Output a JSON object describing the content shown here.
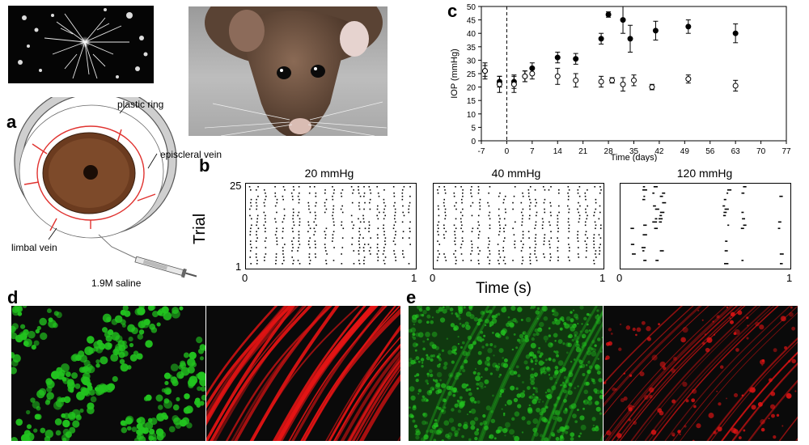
{
  "panels": {
    "a": "a",
    "b": "b",
    "c": "c",
    "d": "d",
    "e": "e"
  },
  "diagram": {
    "plastic_ring": "plastic ring",
    "episcleral_vein": "episcleral vein",
    "limbal_vein": "limbal vein",
    "saline": "1.9M saline"
  },
  "colors": {
    "ring_fill": "#cfcfcf",
    "ring_stroke": "#555555",
    "vein": "#e0322f",
    "eye_fill": "#6b3b1f",
    "green": "#22c41f",
    "red": "#e31414"
  },
  "raster": {
    "ylabel": "Trial",
    "ytick_top": "25",
    "ytick_bottom": "1",
    "xlabel": "Time (s)",
    "xtick_left": "0",
    "xtick_right": "1",
    "plots": [
      {
        "title": "20 mmHg",
        "density": "high"
      },
      {
        "title": "40 mmHg",
        "density": "high"
      },
      {
        "title": "120 mmHg",
        "density": "low"
      }
    ]
  },
  "chart_data": {
    "type": "scatter",
    "xlabel": "Time (days)",
    "ylabel": "IOP (mmHg)",
    "xlim": [
      -7,
      77
    ],
    "ylim": [
      0,
      50
    ],
    "xticks": [
      -7,
      0,
      7,
      14,
      21,
      28,
      35,
      42,
      49,
      56,
      63,
      70,
      77
    ],
    "yticks": [
      0,
      5,
      10,
      15,
      20,
      25,
      30,
      35,
      40,
      45,
      50
    ],
    "vline_x": 0,
    "series": [
      {
        "marker": "filled",
        "points": [
          {
            "x": -6,
            "y": 26,
            "err": 3
          },
          {
            "x": -2,
            "y": 22,
            "err": 2
          },
          {
            "x": 2,
            "y": 22,
            "err": 2.5
          },
          {
            "x": 5,
            "y": 24,
            "err": 2
          },
          {
            "x": 7,
            "y": 27,
            "err": 2
          },
          {
            "x": 14,
            "y": 31,
            "err": 2
          },
          {
            "x": 19,
            "y": 30.5,
            "err": 2
          },
          {
            "x": 26,
            "y": 38,
            "err": 2
          },
          {
            "x": 28,
            "y": 47,
            "err": 1
          },
          {
            "x": 32,
            "y": 45,
            "err": 5
          },
          {
            "x": 34,
            "y": 38,
            "err": 5
          },
          {
            "x": 41,
            "y": 41,
            "err": 3.5
          },
          {
            "x": 50,
            "y": 42.5,
            "err": 2.5
          },
          {
            "x": 63,
            "y": 40,
            "err": 3.5
          }
        ]
      },
      {
        "marker": "open",
        "points": [
          {
            "x": -6,
            "y": 26,
            "err": 2
          },
          {
            "x": -2,
            "y": 21,
            "err": 3
          },
          {
            "x": 2,
            "y": 21,
            "err": 3
          },
          {
            "x": 5,
            "y": 24,
            "err": 2
          },
          {
            "x": 7,
            "y": 25,
            "err": 2
          },
          {
            "x": 14,
            "y": 24,
            "err": 3
          },
          {
            "x": 19,
            "y": 22.5,
            "err": 2.5
          },
          {
            "x": 26,
            "y": 22,
            "err": 2
          },
          {
            "x": 29,
            "y": 22.5,
            "err": 1
          },
          {
            "x": 32,
            "y": 21,
            "err": 2.5
          },
          {
            "x": 35,
            "y": 22.5,
            "err": 2
          },
          {
            "x": 40,
            "y": 20,
            "err": 1
          },
          {
            "x": 50,
            "y": 23,
            "err": 1.5
          },
          {
            "x": 63,
            "y": 20.5,
            "err": 2
          }
        ]
      }
    ]
  }
}
